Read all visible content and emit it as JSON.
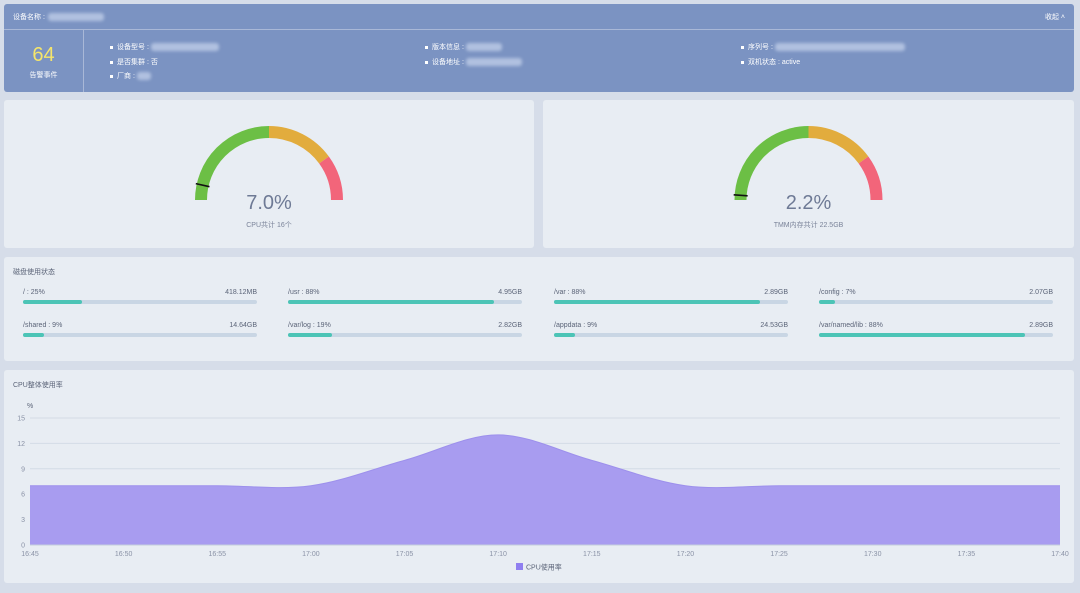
{
  "header": {
    "device_name_label": "设备名称 :",
    "collapse_label": "收起 ˄",
    "alarm_count": "64",
    "alarm_label": "告警事件",
    "info": {
      "model_label": "设备型号 :",
      "version_label": "版本信息 :",
      "serial_label": "序列号 :",
      "cluster_label": "是否集群 : 否",
      "address_label": "设备地址 :",
      "ha_label": "双机状态 : active",
      "vendor_label": "厂商 :"
    }
  },
  "gauges": [
    {
      "value_text": "7.0%",
      "label": "CPU共计 16个",
      "percent": 7.0
    },
    {
      "value_text": "2.2%",
      "label": "TMM内存共计 22.5GB",
      "percent": 2.2
    }
  ],
  "gauge_colors": {
    "green": "#6cbf45",
    "orange": "#e2ac3d",
    "red": "#f2657a"
  },
  "disk": {
    "title": "磁盘使用状态",
    "items": [
      {
        "name": "/ : 25%",
        "size": "418.12MB",
        "percent": 25
      },
      {
        "name": "/usr : 88%",
        "size": "4.95GB",
        "percent": 88
      },
      {
        "name": "/var : 88%",
        "size": "2.89GB",
        "percent": 88
      },
      {
        "name": "/config : 7%",
        "size": "2.07GB",
        "percent": 7
      },
      {
        "name": "/shared : 9%",
        "size": "14.64GB",
        "percent": 9
      },
      {
        "name": "/var/log : 19%",
        "size": "2.82GB",
        "percent": 19
      },
      {
        "name": "/appdata : 9%",
        "size": "24.53GB",
        "percent": 9
      },
      {
        "name": "/var/named/lib : 88%",
        "size": "2.89GB",
        "percent": 88
      }
    ]
  },
  "cpu_chart": {
    "title": "CPU整体使用率",
    "legend": "CPU使用率",
    "unit": "%"
  },
  "chart_data": {
    "type": "area",
    "ylabel": "%",
    "ylim": [
      0,
      15
    ],
    "yticks": [
      0,
      3,
      6,
      9,
      12,
      15
    ],
    "grid": true,
    "legend_position": "bottom",
    "color": "#a89cf0",
    "x": [
      "16:45",
      "16:50",
      "16:55",
      "17:00",
      "17:05",
      "17:10",
      "17:15",
      "17:20",
      "17:25",
      "17:30",
      "17:35",
      "17:40"
    ],
    "series": [
      {
        "name": "CPU使用率",
        "values": [
          7.0,
          7.0,
          7.0,
          7.0,
          10.0,
          13.0,
          10.0,
          7.0,
          7.0,
          7.0,
          7.0,
          7.0
        ]
      }
    ]
  }
}
